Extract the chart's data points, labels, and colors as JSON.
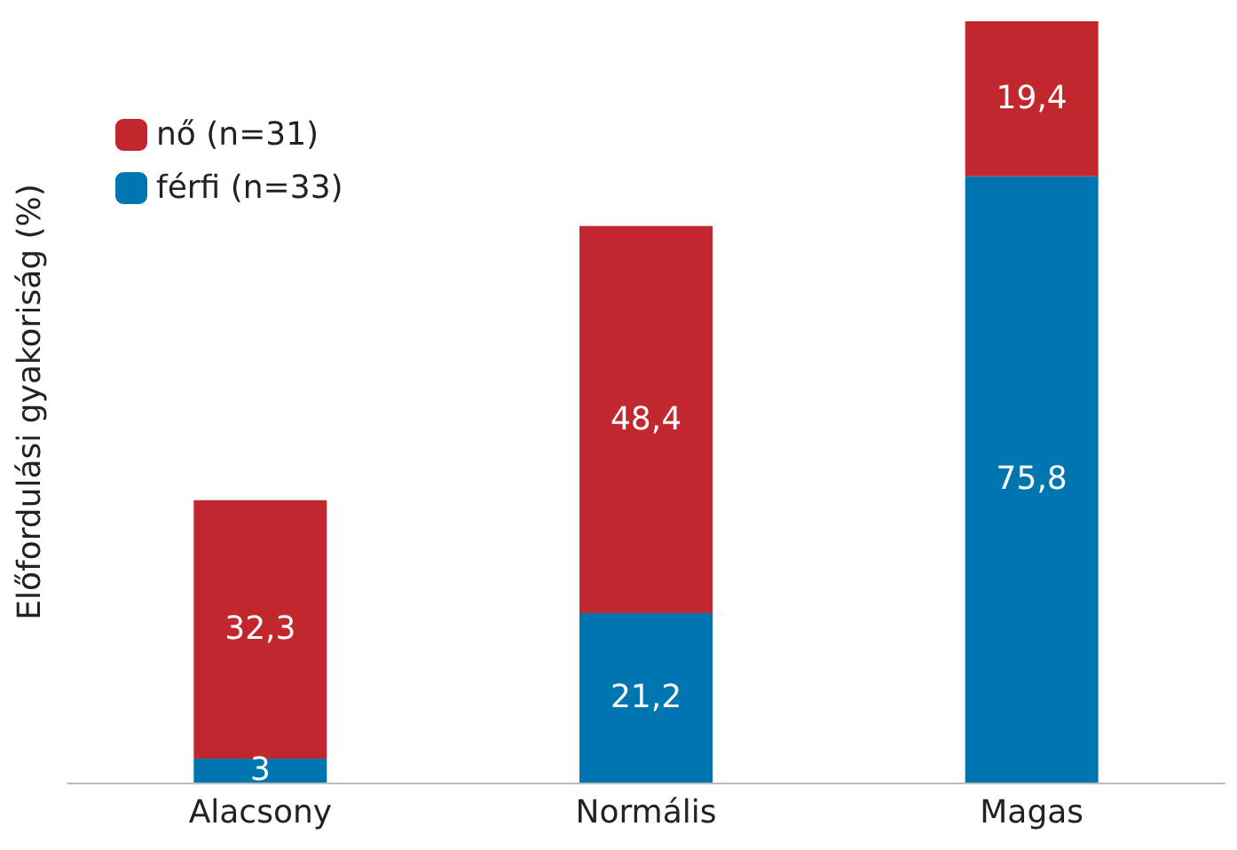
{
  "chart_data": {
    "type": "bar",
    "stacked": true,
    "ylabel": "Előfordulási gyakoriság (%)",
    "categories": [
      "Alacsony",
      "Normális",
      "Magas"
    ],
    "series": [
      {
        "name": "férfi (n=33)",
        "color": "#0076b0",
        "values": [
          3,
          21.2,
          75.8
        ],
        "value_labels": [
          "3",
          "21,2",
          "75,8"
        ]
      },
      {
        "name": "nő (n=31)",
        "color": "#c1272d",
        "values": [
          32.3,
          48.4,
          19.4
        ],
        "value_labels": [
          "32,3",
          "48,4",
          "19,4"
        ]
      }
    ],
    "legend": "top left",
    "grid": false
  }
}
